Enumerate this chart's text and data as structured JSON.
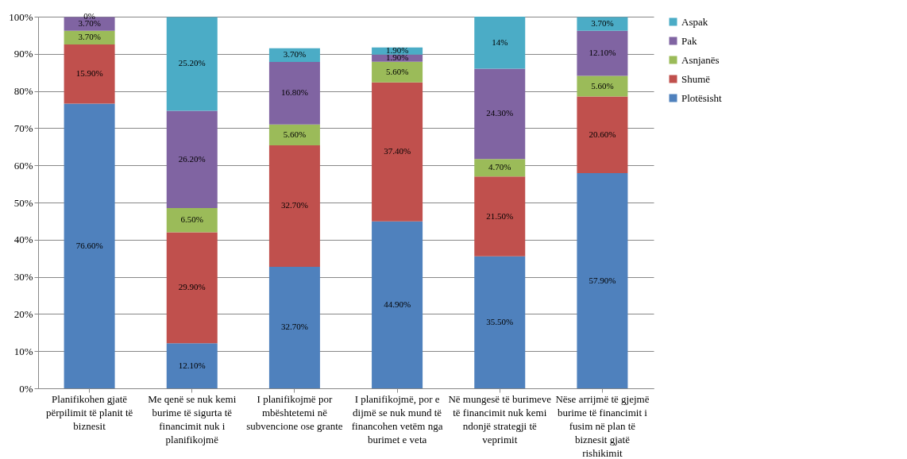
{
  "chart_data": {
    "type": "bar",
    "stacked": true,
    "categories": [
      "Planifikohen gjatë përpilimit të planit të biznesit",
      "Me qenë se nuk kemi burime të sigurta të financimit nuk i planifikojmë",
      "I planifikojmë por mbështetemi në subvencione ose grante",
      "I planifikojmë, por e dijmë se nuk mund të financohen vetëm nga burimet e veta",
      "Në mungesë të burimeve të financimit nuk kemi ndonjë strategji të veprimit",
      "Nëse arrijmë të gjejmë burime të financimit i fusim në plan të biznesit gjatë rishikimit"
    ],
    "series": [
      {
        "name": "Plotësisht",
        "color": "#4f81bd",
        "values": [
          76.6,
          12.1,
          32.7,
          44.9,
          35.5,
          57.9
        ],
        "value_labels": [
          "76.60%",
          "12.10%",
          "32.70%",
          "44.90%",
          "35.50%",
          "57.90%"
        ]
      },
      {
        "name": "Shumë",
        "color": "#c0504d",
        "values": [
          15.9,
          29.9,
          32.7,
          37.4,
          21.5,
          20.6
        ],
        "value_labels": [
          "15.90%",
          "29.90%",
          "32.70%",
          "37.40%",
          "21.50%",
          "20.60%"
        ]
      },
      {
        "name": "Asnjanës",
        "color": "#9bbb59",
        "values": [
          3.7,
          6.5,
          5.6,
          5.6,
          4.7,
          5.6
        ],
        "value_labels": [
          "3.70%",
          "6.50%",
          "5.60%",
          "5.60%",
          "4.70%",
          "5.60%"
        ]
      },
      {
        "name": "Pak",
        "color": "#8064a2",
        "values": [
          3.7,
          26.2,
          16.8,
          1.9,
          24.3,
          12.1
        ],
        "value_labels": [
          "3.70%",
          "26.20%",
          "16.80%",
          "1.90%",
          "24.30%",
          "12.10%"
        ]
      },
      {
        "name": "Aspak",
        "color": "#4bacc6",
        "values": [
          0,
          25.2,
          3.7,
          1.9,
          14.0,
          3.7
        ],
        "value_labels": [
          "0%",
          "25.20%",
          "3.70%",
          "1.90%",
          "14%",
          "3.70%"
        ]
      }
    ],
    "ylim": [
      0,
      100
    ],
    "yticks": [
      {
        "value": 0,
        "label": "0%"
      },
      {
        "value": 10,
        "label": "10%"
      },
      {
        "value": 20,
        "label": "20%"
      },
      {
        "value": 30,
        "label": "30%"
      },
      {
        "value": 40,
        "label": "40%"
      },
      {
        "value": 50,
        "label": "50%"
      },
      {
        "value": 60,
        "label": "60%"
      },
      {
        "value": 70,
        "label": "70%"
      },
      {
        "value": 80,
        "label": "80%"
      },
      {
        "value": 90,
        "label": "90%"
      },
      {
        "value": 100,
        "label": "100%"
      }
    ],
    "grid": "y",
    "legend": "right"
  }
}
